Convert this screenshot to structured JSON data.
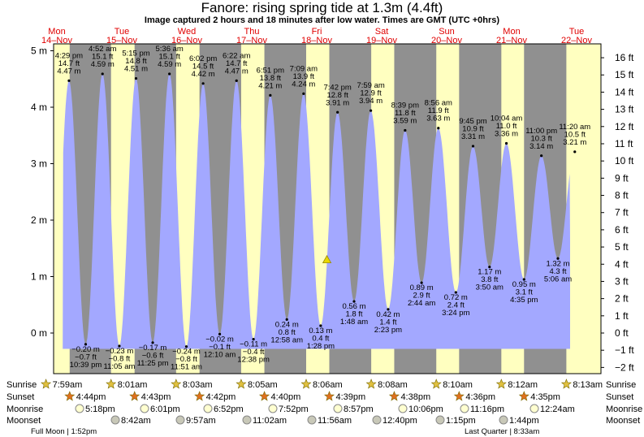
{
  "title": "Fanore: rising  spring tide at 1.3m (4.4ft)",
  "subtitle": "Image captured 2 hours and 18 minutes after low water. Times are GMT (UTC +0hrs)",
  "chart_data": {
    "type": "area",
    "x_unit": "days",
    "x_start_label": "Mon 14-Nov 00:00",
    "ylim_m": [
      -0.45,
      5.15
    ],
    "ylim_ft": [
      -2.4,
      16.8
    ],
    "y_ticks_m": [
      "5 m",
      "4 m",
      "3 m",
      "2 m",
      "1 m",
      "0 m"
    ],
    "y_ticks_ft": [
      "16 ft",
      "15 ft",
      "14 ft",
      "13 ft",
      "12 ft",
      "11 ft",
      "10 ft",
      "9 ft",
      "8 ft",
      "7 ft",
      "6 ft",
      "5 ft",
      "4 ft",
      "3 ft",
      "2 ft",
      "1 ft",
      "0 ft",
      "−1 ft",
      "−2 ft"
    ],
    "days": [
      {
        "name": "Mon",
        "date": "14–Nov"
      },
      {
        "name": "Tue",
        "date": "15–Nov"
      },
      {
        "name": "Wed",
        "date": "16–Nov"
      },
      {
        "name": "Thu",
        "date": "17–Nov"
      },
      {
        "name": "Fri",
        "date": "18–Nov"
      },
      {
        "name": "Sat",
        "date": "19–Nov"
      },
      {
        "name": "Sun",
        "date": "20–Nov"
      },
      {
        "name": "Mon",
        "date": "21–Nov"
      },
      {
        "name": "Tue",
        "date": "22–Nov"
      }
    ],
    "tides": [
      {
        "type": "high",
        "day": 0,
        "time": "4:29 pm",
        "ft": "14.7 ft",
        "m": 4.47,
        "m_label": "4.47 m"
      },
      {
        "type": "low",
        "day": 0,
        "time": "10:39 pm",
        "ft": "−0.7 ft",
        "m": -0.2,
        "m_label": "−0.20 m"
      },
      {
        "type": "high",
        "day": 1,
        "time": "4:52 am",
        "ft": "15.1 ft",
        "m": 4.59,
        "m_label": "4.59 m"
      },
      {
        "type": "low",
        "day": 1,
        "time": "11:05 am",
        "ft": "−0.8 ft",
        "m": -0.23,
        "m_label": "−0.23 m"
      },
      {
        "type": "high",
        "day": 1,
        "time": "5:15 pm",
        "ft": "14.8 ft",
        "m": 4.51,
        "m_label": "4.51 m"
      },
      {
        "type": "low",
        "day": 1,
        "time": "11:25 pm",
        "ft": "−0.6 ft",
        "m": -0.17,
        "m_label": "−0.17 m"
      },
      {
        "type": "high",
        "day": 2,
        "time": "5:36 am",
        "ft": "15.1 ft",
        "m": 4.59,
        "m_label": "4.59 m"
      },
      {
        "type": "low",
        "day": 2,
        "time": "11:51 am",
        "ft": "−0.8 ft",
        "m": -0.24,
        "m_label": "−0.24 m"
      },
      {
        "type": "high",
        "day": 2,
        "time": "6:02 pm",
        "ft": "14.5 ft",
        "m": 4.42,
        "m_label": "4.42 m"
      },
      {
        "type": "low",
        "day": 3,
        "time": "12:10 am",
        "ft": "−0.1 ft",
        "m": -0.02,
        "m_label": "−0.02 m"
      },
      {
        "type": "high",
        "day": 3,
        "time": "6:22 am",
        "ft": "14.7 ft",
        "m": 4.47,
        "m_label": "4.47 m"
      },
      {
        "type": "low",
        "day": 3,
        "time": "12:38 pm",
        "ft": "−0.4 ft",
        "m": -0.11,
        "m_label": "−0.11 m"
      },
      {
        "type": "high",
        "day": 3,
        "time": "6:51 pm",
        "ft": "13.8 ft",
        "m": 4.21,
        "m_label": "4.21 m"
      },
      {
        "type": "low",
        "day": 4,
        "time": "12:58 am",
        "ft": "0.8 ft",
        "m": 0.24,
        "m_label": "0.24 m"
      },
      {
        "type": "high",
        "day": 4,
        "time": "7:09 am",
        "ft": "13.9 ft",
        "m": 4.24,
        "m_label": "4.24 m"
      },
      {
        "type": "low",
        "day": 4,
        "time": "1:28 pm",
        "ft": "0.4 ft",
        "m": 0.13,
        "m_label": "0.13 m"
      },
      {
        "type": "high",
        "day": 4,
        "time": "7:42 pm",
        "ft": "12.8 ft",
        "m": 3.91,
        "m_label": "3.91 m"
      },
      {
        "type": "low",
        "day": 5,
        "time": "1:48 am",
        "ft": "1.8 ft",
        "m": 0.56,
        "m_label": "0.56 m"
      },
      {
        "type": "high",
        "day": 5,
        "time": "7:59 am",
        "ft": "12.9 ft",
        "m": 3.94,
        "m_label": "3.94 m"
      },
      {
        "type": "low",
        "day": 5,
        "time": "2:23 pm",
        "ft": "1.4 ft",
        "m": 0.42,
        "m_label": "0.42 m"
      },
      {
        "type": "high",
        "day": 5,
        "time": "8:39 pm",
        "ft": "11.8 ft",
        "m": 3.59,
        "m_label": "3.59 m"
      },
      {
        "type": "low",
        "day": 6,
        "time": "2:44 am",
        "ft": "2.9 ft",
        "m": 0.89,
        "m_label": "0.89 m"
      },
      {
        "type": "high",
        "day": 6,
        "time": "8:56 am",
        "ft": "11.9 ft",
        "m": 3.63,
        "m_label": "3.63 m"
      },
      {
        "type": "low",
        "day": 6,
        "time": "3:24 pm",
        "ft": "2.4 ft",
        "m": 0.72,
        "m_label": "0.72 m"
      },
      {
        "type": "high",
        "day": 6,
        "time": "9:45 pm",
        "ft": "10.9 ft",
        "m": 3.31,
        "m_label": "3.31 m"
      },
      {
        "type": "low",
        "day": 7,
        "time": "3:50 am",
        "ft": "3.8 ft",
        "m": 1.17,
        "m_label": "1.17 m"
      },
      {
        "type": "high",
        "day": 7,
        "time": "10:04 am",
        "ft": "11.0 ft",
        "m": 3.36,
        "m_label": "3.36 m"
      },
      {
        "type": "low",
        "day": 7,
        "time": "4:35 pm",
        "ft": "3.1 ft",
        "m": 0.95,
        "m_label": "0.95 m"
      },
      {
        "type": "high",
        "day": 7,
        "time": "11:00 pm",
        "ft": "10.3 ft",
        "m": 3.14,
        "m_label": "3.14 m"
      },
      {
        "type": "low",
        "day": 8,
        "time": "5:06 am",
        "ft": "4.3 ft",
        "m": 1.32,
        "m_label": "1.32 m"
      },
      {
        "type": "high",
        "day": 8,
        "time": "11:20 am",
        "ft": "10.5 ft",
        "m": 3.21,
        "m_label": "3.21 m"
      }
    ],
    "current": {
      "day": 4,
      "time": "3:46 pm",
      "m": 1.3
    },
    "sunrise": [
      "7:59am",
      "8:01am",
      "8:03am",
      "8:05am",
      "8:06am",
      "8:08am",
      "8:10am",
      "8:12am",
      "8:13am"
    ],
    "sunset": [
      "4:44pm",
      "4:43pm",
      "4:42pm",
      "4:40pm",
      "4:39pm",
      "4:38pm",
      "4:36pm",
      "4:35pm"
    ],
    "moonrise": [
      "5:18pm",
      "6:01pm",
      "6:52pm",
      "7:52pm",
      "8:57pm",
      "10:06pm",
      "11:16pm",
      "12:24am"
    ],
    "moonset": [
      "8:42am",
      "9:57am",
      "11:02am",
      "11:56am",
      "12:40pm",
      "1:15pm",
      "1:44pm"
    ],
    "row_labels": {
      "sunrise": "Sunrise",
      "sunset": "Sunset",
      "moonrise": "Moonrise",
      "moonset": "Moonset"
    },
    "moon_phases": [
      {
        "day": 0,
        "label": "Full Moon | 1:52pm"
      },
      {
        "day": 6,
        "label": "Last Quarter | 8:33am"
      }
    ],
    "colors": {
      "day": "#ffffc0",
      "night": "#909090",
      "water": "#a3a8ff",
      "day_label": "#e00000",
      "marker": "#e8d800"
    }
  }
}
